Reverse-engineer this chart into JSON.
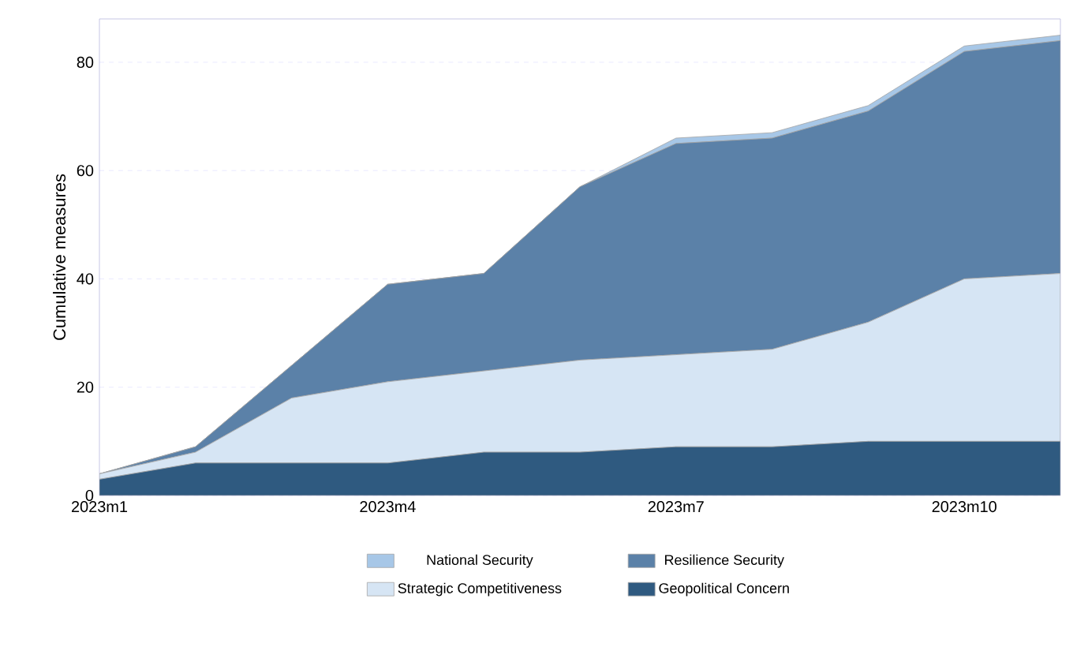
{
  "chart_data": {
    "type": "area",
    "stacked": true,
    "ylabel": "Cumulative measures",
    "categories": [
      "2023m1",
      null,
      null,
      "2023m4",
      null,
      null,
      "2023m7",
      null,
      null,
      "2023m10",
      null
    ],
    "series": [
      {
        "name": "Geopolitical Concern",
        "color": "#2f5a80",
        "values": [
          3,
          6,
          6,
          6,
          8,
          8,
          9,
          9,
          10,
          10,
          10
        ]
      },
      {
        "name": "Strategic Competitiveness",
        "color": "#d6e5f4",
        "values": [
          1,
          2,
          12,
          15,
          15,
          17,
          17,
          18,
          22,
          30,
          31
        ]
      },
      {
        "name": "Resilience Security",
        "color": "#5b81a8",
        "values": [
          0,
          1,
          6,
          18,
          18,
          32,
          39,
          39,
          39,
          42,
          43
        ]
      },
      {
        "name": "National Security",
        "color": "#a7c7e7",
        "values": [
          0,
          0,
          0,
          0,
          0,
          0,
          1,
          1,
          1,
          1,
          1
        ]
      }
    ],
    "ylim": [
      0,
      88
    ],
    "yticks": [
      0,
      20,
      40,
      60,
      80
    ],
    "grid": "y",
    "legend": "bottom"
  }
}
